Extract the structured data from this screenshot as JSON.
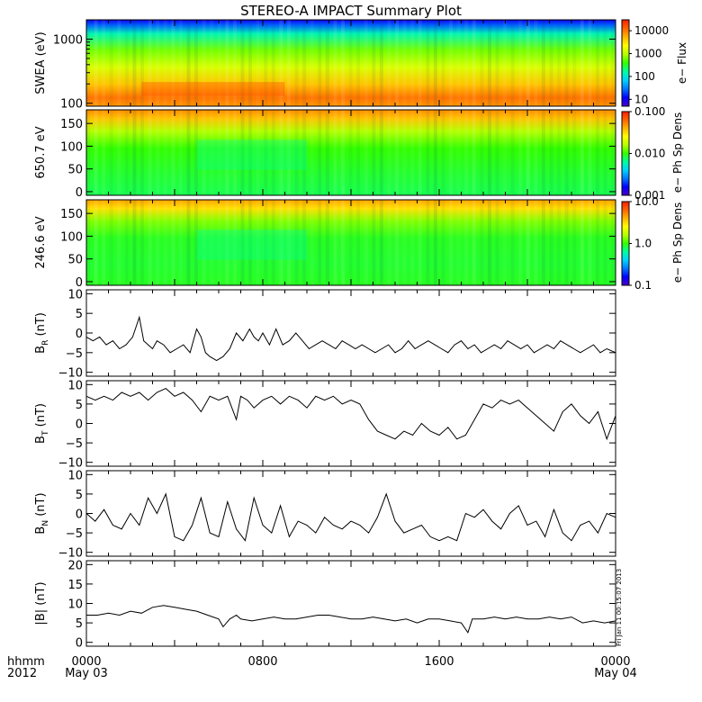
{
  "title": "STEREO-A IMPACT Summary Plot",
  "colors": {
    "background": "#ffffff",
    "foreground": "#000000",
    "colormap": [
      "#4b00c8",
      "#0000ff",
      "#0078ff",
      "#00d2ff",
      "#00ffa0",
      "#32ff00",
      "#b4ff00",
      "#ffff00",
      "#ffb400",
      "#ff6400",
      "#ff1e00"
    ]
  },
  "time_axis": {
    "corner_label_top": "hhmm",
    "corner_label_bottom": "2012",
    "ticks": [
      {
        "hours": 0,
        "label": "0000",
        "sublabel": "May 03"
      },
      {
        "hours": 8,
        "label": "0800",
        "sublabel": ""
      },
      {
        "hours": 16,
        "label": "1600",
        "sublabel": ""
      },
      {
        "hours": 24,
        "label": "0000",
        "sublabel": "May 04"
      }
    ],
    "range_hours": [
      0,
      24
    ]
  },
  "timestamp_note": "Fri Jan 11 00:15:07 2013",
  "chart_data": [
    {
      "id": "swea",
      "type": "heatmap",
      "ylabel": "SWEA (eV)",
      "yscale": "log",
      "ylim": [
        90,
        2000
      ],
      "yticks": [
        100,
        1000
      ],
      "ytick_labels": [
        "100",
        "1000"
      ],
      "colorbar": {
        "label": "e− Flux",
        "scale": "log",
        "range": [
          5,
          30000
        ],
        "ticks": [
          10,
          100,
          1000,
          10000
        ],
        "tick_labels": [
          "10",
          "100",
          "1000",
          "10000"
        ]
      },
      "description_values": {
        "x_hours": [
          0,
          24
        ],
        "dominant_flux_at_100eV": 10000,
        "dominant_flux_at_1000eV": 100
      }
    },
    {
      "id": "pad650",
      "type": "heatmap",
      "ylabel": "650.7 eV",
      "yscale": "linear",
      "ylim": [
        -8,
        180
      ],
      "yticks": [
        0,
        50,
        100,
        150
      ],
      "ytick_labels": [
        "0",
        "50",
        "100",
        "150"
      ],
      "colorbar": {
        "label": "e− Ph Sp Dens",
        "scale": "log",
        "range": [
          0.001,
          0.1
        ],
        "ticks": [
          0.001,
          0.01,
          0.1
        ],
        "tick_labels": [
          "0.001",
          "0.010",
          "0.100"
        ]
      }
    },
    {
      "id": "pad246",
      "type": "heatmap",
      "ylabel": "246.6 eV",
      "yscale": "linear",
      "ylim": [
        -8,
        180
      ],
      "yticks": [
        0,
        50,
        100,
        150
      ],
      "ytick_labels": [
        "0",
        "50",
        "100",
        "150"
      ],
      "colorbar": {
        "label": "e− Ph Sp Dens",
        "scale": "log",
        "range": [
          0.1,
          10
        ],
        "ticks": [
          0.1,
          1,
          10
        ],
        "tick_labels": [
          "0.1",
          "1.0",
          "10.0"
        ]
      }
    },
    {
      "id": "br",
      "type": "line",
      "ylabel": "B",
      "ylabel_sub": "R",
      "ylabel_unit": "(nT)",
      "ylim": [
        -11,
        11
      ],
      "yticks": [
        -10,
        -5,
        0,
        5,
        10
      ],
      "ytick_labels": [
        "−10",
        "−5",
        "0",
        "5",
        "10"
      ],
      "x_hours": [
        0,
        0.3,
        0.6,
        0.9,
        1.2,
        1.5,
        1.8,
        2.1,
        2.4,
        2.6,
        2.8,
        3.0,
        3.2,
        3.5,
        3.8,
        4.1,
        4.4,
        4.7,
        5.0,
        5.2,
        5.4,
        5.6,
        5.9,
        6.2,
        6.5,
        6.8,
        7.1,
        7.4,
        7.6,
        7.8,
        8.0,
        8.3,
        8.6,
        8.9,
        9.2,
        9.5,
        9.8,
        10.1,
        10.4,
        10.7,
        11.0,
        11.3,
        11.6,
        11.9,
        12.2,
        12.5,
        12.8,
        13.1,
        13.4,
        13.7,
        14.0,
        14.3,
        14.6,
        14.9,
        15.2,
        15.5,
        15.8,
        16.1,
        16.4,
        16.7,
        17.0,
        17.3,
        17.6,
        17.9,
        18.2,
        18.5,
        18.8,
        19.1,
        19.4,
        19.7,
        20.0,
        20.3,
        20.6,
        20.9,
        21.2,
        21.5,
        21.8,
        22.1,
        22.4,
        22.7,
        23.0,
        23.3,
        23.6,
        24.0
      ],
      "values": [
        -1,
        -2,
        -1,
        -3,
        -2,
        -4,
        -3,
        -1,
        4,
        -2,
        -3,
        -4,
        -2,
        -3,
        -5,
        -4,
        -3,
        -5,
        1,
        -1,
        -5,
        -6,
        -7,
        -6,
        -4,
        0,
        -2,
        1,
        -1,
        -2,
        0,
        -3,
        1,
        -3,
        -2,
        0,
        -2,
        -4,
        -3,
        -2,
        -3,
        -4,
        -2,
        -3,
        -4,
        -3,
        -4,
        -5,
        -4,
        -3,
        -5,
        -4,
        -2,
        -4,
        -3,
        -2,
        -3,
        -4,
        -5,
        -3,
        -2,
        -4,
        -3,
        -5,
        -4,
        -3,
        -4,
        -2,
        -3,
        -4,
        -3,
        -5,
        -4,
        -3,
        -4,
        -2,
        -3,
        -4,
        -5,
        -4,
        -3,
        -5,
        -4,
        -5
      ],
      "title": ""
    },
    {
      "id": "bt",
      "type": "line",
      "ylabel": "B",
      "ylabel_sub": "T",
      "ylabel_unit": "(nT)",
      "ylim": [
        -11,
        11
      ],
      "yticks": [
        -10,
        -5,
        0,
        5,
        10
      ],
      "ytick_labels": [
        "−10",
        "−5",
        "0",
        "5",
        "10"
      ],
      "x_hours": [
        0,
        0.4,
        0.8,
        1.2,
        1.6,
        2.0,
        2.4,
        2.8,
        3.2,
        3.6,
        4.0,
        4.4,
        4.8,
        5.2,
        5.6,
        6.0,
        6.4,
        6.8,
        7.0,
        7.3,
        7.6,
        8.0,
        8.4,
        8.8,
        9.2,
        9.6,
        10.0,
        10.4,
        10.8,
        11.2,
        11.6,
        12.0,
        12.4,
        12.8,
        13.2,
        13.6,
        14.0,
        14.4,
        14.8,
        15.2,
        15.6,
        16.0,
        16.4,
        16.8,
        17.2,
        17.6,
        18.0,
        18.4,
        18.8,
        19.2,
        19.6,
        20.0,
        20.4,
        20.8,
        21.2,
        21.6,
        22.0,
        22.4,
        22.8,
        23.2,
        23.6,
        24.0
      ],
      "values": [
        7,
        6,
        7,
        6,
        8,
        7,
        8,
        6,
        8,
        9,
        7,
        8,
        6,
        3,
        7,
        6,
        7,
        1,
        7,
        6,
        4,
        6,
        7,
        5,
        7,
        6,
        4,
        7,
        6,
        7,
        5,
        6,
        5,
        1,
        -2,
        -3,
        -4,
        -2,
        -3,
        0,
        -2,
        -3,
        -1,
        -4,
        -3,
        1,
        5,
        4,
        6,
        5,
        6,
        4,
        2,
        0,
        -2,
        3,
        5,
        2,
        0,
        3,
        -4,
        2
      ]
    },
    {
      "id": "bn",
      "type": "line",
      "ylabel": "B",
      "ylabel_sub": "N",
      "ylabel_unit": "(nT)",
      "ylim": [
        -11,
        11
      ],
      "yticks": [
        -10,
        -5,
        0,
        5,
        10
      ],
      "ytick_labels": [
        "−10",
        "−5",
        "0",
        "5",
        "10"
      ],
      "x_hours": [
        0,
        0.4,
        0.8,
        1.2,
        1.6,
        2.0,
        2.4,
        2.8,
        3.2,
        3.6,
        4.0,
        4.4,
        4.8,
        5.2,
        5.6,
        6.0,
        6.4,
        6.8,
        7.2,
        7.6,
        8.0,
        8.4,
        8.8,
        9.2,
        9.6,
        10.0,
        10.4,
        10.8,
        11.2,
        11.6,
        12.0,
        12.4,
        12.8,
        13.2,
        13.6,
        14.0,
        14.4,
        14.8,
        15.2,
        15.6,
        16.0,
        16.4,
        16.8,
        17.2,
        17.6,
        18.0,
        18.4,
        18.8,
        19.2,
        19.6,
        20.0,
        20.4,
        20.8,
        21.2,
        21.6,
        22.0,
        22.4,
        22.8,
        23.2,
        23.6,
        24.0
      ],
      "values": [
        0,
        -2,
        1,
        -3,
        -4,
        0,
        -3,
        4,
        0,
        5,
        -6,
        -7,
        -3,
        4,
        -5,
        -6,
        3,
        -4,
        -7,
        4,
        -3,
        -5,
        2,
        -6,
        -2,
        -3,
        -5,
        -1,
        -3,
        -4,
        -2,
        -3,
        -5,
        -1,
        5,
        -2,
        -5,
        -4,
        -3,
        -6,
        -7,
        -6,
        -7,
        0,
        -1,
        1,
        -2,
        -4,
        0,
        2,
        -3,
        -2,
        -6,
        1,
        -5,
        -7,
        -3,
        -2,
        -5,
        0,
        -1
      ]
    },
    {
      "id": "bmag",
      "type": "line",
      "ylabel": "|B|",
      "ylabel_unit": "(nT)",
      "ylim": [
        -1,
        21
      ],
      "yticks": [
        0,
        5,
        10,
        15,
        20
      ],
      "ytick_labels": [
        "0",
        "5",
        "10",
        "15",
        "20"
      ],
      "x_hours": [
        0,
        0.5,
        1.0,
        1.5,
        2.0,
        2.5,
        3.0,
        3.5,
        4.0,
        4.5,
        5.0,
        5.5,
        6.0,
        6.2,
        6.5,
        6.8,
        7.0,
        7.5,
        8.0,
        8.5,
        9.0,
        9.5,
        10.0,
        10.5,
        11.0,
        11.5,
        12.0,
        12.5,
        13.0,
        13.5,
        14.0,
        14.5,
        15.0,
        15.5,
        16.0,
        16.5,
        17.0,
        17.3,
        17.5,
        18.0,
        18.5,
        19.0,
        19.5,
        20.0,
        20.5,
        21.0,
        21.5,
        22.0,
        22.5,
        23.0,
        23.5,
        24.0
      ],
      "values": [
        7,
        7,
        7.5,
        7,
        8,
        7.5,
        9,
        9.5,
        9,
        8.5,
        8,
        7,
        6,
        4,
        6,
        7,
        6,
        5.5,
        6,
        6.5,
        6,
        6,
        6.5,
        7,
        7,
        6.5,
        6,
        6,
        6.5,
        6,
        5.5,
        6,
        5,
        6,
        6,
        5.5,
        5,
        2.5,
        6,
        6,
        6.5,
        6,
        6.5,
        6,
        6,
        6.5,
        6,
        6.5,
        5,
        5.5,
        5,
        5.5
      ]
    }
  ]
}
